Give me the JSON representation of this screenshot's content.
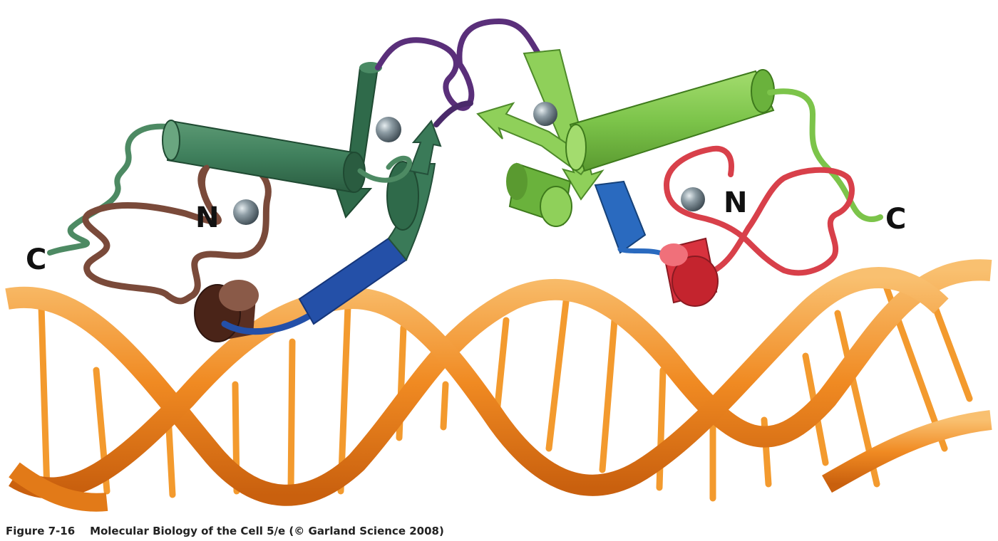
{
  "colors": {
    "dna_backbone": "#f0841c",
    "dna_backbone_light": "#f7b150",
    "dna_rung": "#f39a2e",
    "left_helix_primary": "#3f7f5c",
    "left_strand_primary": "#3a7a58",
    "left_loop_green": "#4d8a63",
    "left_loop_brown": "#7a4a3a",
    "left_cylinder_brown": "#5a2f22",
    "left_loop_purple": "#5a2f7a",
    "right_helix_primary": "#7cc44a",
    "right_strand_primary": "#8fd05a",
    "right_loop_red": "#d8404a",
    "right_cylinder_red": "#d8323e",
    "recognition_blue": "#2450a8",
    "zinc_atom": "#7d8c94"
  },
  "icons": [
    "zinc-atom-icon",
    "alpha-helix-cylinder",
    "beta-strand-arrow",
    "dna-double-helix"
  ],
  "labels": {
    "left_n": "N",
    "left_c": "C",
    "right_n": "N",
    "right_c": "C"
  },
  "caption": {
    "figure_number": "Figure 7-16",
    "text": "Molecular Biology of the Cell 5/e (© Garland Science 2008)"
  }
}
